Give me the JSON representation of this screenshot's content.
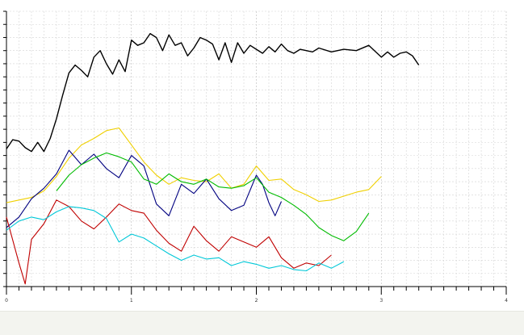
{
  "chart_data": {
    "type": "line",
    "title": "",
    "xlabel": "",
    "ylabel": "",
    "grid": true,
    "legend": "none",
    "xlim": [
      0,
      4.0
    ],
    "ylim": [
      0,
      21
    ],
    "x_ticks": [
      {
        "value": 0,
        "label": "0"
      },
      {
        "value": 1,
        "label": "1"
      },
      {
        "value": 2,
        "label": "2"
      },
      {
        "value": 3,
        "label": "3"
      },
      {
        "value": 4,
        "label": "4"
      }
    ],
    "y_ticks": [
      0,
      1,
      2,
      3,
      4,
      5,
      6,
      7,
      8,
      9,
      10,
      11,
      12,
      13,
      14,
      15,
      16,
      17,
      18,
      19,
      20,
      21
    ],
    "series": [
      {
        "color": "#000000",
        "x": [
          0.0,
          0.05,
          0.1,
          0.15,
          0.2,
          0.25,
          0.3,
          0.35,
          0.4,
          0.45,
          0.5,
          0.55,
          0.6,
          0.65,
          0.7,
          0.75,
          0.8,
          0.85,
          0.9,
          0.95,
          1.0,
          1.05,
          1.1,
          1.15,
          1.2,
          1.25,
          1.3,
          1.35,
          1.4,
          1.45,
          1.5,
          1.55,
          1.6,
          1.65,
          1.7,
          1.75,
          1.8,
          1.85,
          1.9,
          1.95,
          2.0,
          2.05,
          2.1,
          2.15,
          2.2,
          2.25,
          2.3,
          2.35,
          2.4,
          2.45,
          2.5,
          2.6,
          2.7,
          2.8,
          2.9,
          3.0,
          3.05,
          3.1,
          3.15,
          3.2,
          3.25,
          3.3
        ],
        "values": [
          10.5,
          11.2,
          11.1,
          10.6,
          10.3,
          11.0,
          10.3,
          11.3,
          12.8,
          14.6,
          16.3,
          16.9,
          16.5,
          16.0,
          17.5,
          18.0,
          17.0,
          16.2,
          17.3,
          16.4,
          18.8,
          18.4,
          18.6,
          19.3,
          19.0,
          18.0,
          19.2,
          18.4,
          18.6,
          17.6,
          18.2,
          19.0,
          18.8,
          18.5,
          17.3,
          18.6,
          17.1,
          18.6,
          17.8,
          18.4,
          18.1,
          17.8,
          18.3,
          17.9,
          18.5,
          18.0,
          17.8,
          18.1,
          18.0,
          17.9,
          18.2,
          17.9,
          18.1,
          18.0,
          18.4,
          17.5,
          17.9,
          17.5,
          17.8,
          17.9,
          17.6,
          16.9
        ]
      },
      {
        "color": "#f0d000",
        "x": [
          0.0,
          0.1,
          0.2,
          0.3,
          0.4,
          0.5,
          0.6,
          0.7,
          0.8,
          0.9,
          1.0,
          1.1,
          1.2,
          1.3,
          1.4,
          1.5,
          1.6,
          1.7,
          1.8,
          1.9,
          2.0,
          2.1,
          2.2,
          2.3,
          2.4,
          2.5,
          2.6,
          2.7,
          2.8,
          2.9,
          3.0
        ],
        "values": [
          6.4,
          6.6,
          6.8,
          7.3,
          8.4,
          9.8,
          10.8,
          11.3,
          11.9,
          12.1,
          10.8,
          9.5,
          8.5,
          7.8,
          8.3,
          8.1,
          8.0,
          8.6,
          7.5,
          7.8,
          9.2,
          8.1,
          8.2,
          7.4,
          7.0,
          6.5,
          6.6,
          6.9,
          7.2,
          7.4,
          8.4
        ]
      },
      {
        "color": "#000080",
        "x": [
          0.0,
          0.1,
          0.2,
          0.3,
          0.4,
          0.5,
          0.6,
          0.7,
          0.8,
          0.9,
          1.0,
          1.1,
          1.2,
          1.3,
          1.4,
          1.5,
          1.6,
          1.7,
          1.8,
          1.9,
          2.0,
          2.05,
          2.1,
          2.15,
          2.2
        ],
        "values": [
          4.5,
          5.3,
          6.7,
          7.5,
          8.6,
          10.4,
          9.3,
          10.1,
          9.0,
          8.3,
          10.0,
          9.2,
          6.3,
          5.4,
          7.8,
          7.1,
          8.2,
          6.7,
          5.8,
          6.2,
          8.5,
          7.8,
          6.4,
          5.4,
          6.5
        ]
      },
      {
        "color": "#00bb00",
        "x": [
          0.4,
          0.5,
          0.6,
          0.7,
          0.8,
          0.9,
          1.0,
          1.1,
          1.2,
          1.3,
          1.4,
          1.5,
          1.6,
          1.7,
          1.8,
          1.9,
          2.0,
          2.1,
          2.2,
          2.3,
          2.4,
          2.5,
          2.6,
          2.7,
          2.8,
          2.9
        ],
        "values": [
          7.3,
          8.5,
          9.3,
          9.8,
          10.2,
          9.9,
          9.5,
          8.2,
          7.8,
          8.6,
          8.0,
          7.8,
          8.2,
          7.6,
          7.5,
          7.7,
          8.3,
          7.2,
          6.8,
          6.2,
          5.5,
          4.5,
          3.9,
          3.5,
          4.2,
          5.6
        ]
      },
      {
        "color": "#c00000",
        "x": [
          0.0,
          0.1,
          0.15,
          0.2,
          0.3,
          0.4,
          0.5,
          0.6,
          0.7,
          0.8,
          0.9,
          1.0,
          1.1,
          1.2,
          1.3,
          1.4,
          1.5,
          1.6,
          1.7,
          1.8,
          1.9,
          2.0,
          2.1,
          2.2,
          2.3,
          2.4,
          2.5,
          2.6
        ],
        "values": [
          5.3,
          1.8,
          0.2,
          3.6,
          4.8,
          6.6,
          6.1,
          5.0,
          4.4,
          5.3,
          6.3,
          5.8,
          5.6,
          4.3,
          3.3,
          2.7,
          4.6,
          3.5,
          2.7,
          3.8,
          3.4,
          3.0,
          3.8,
          2.2,
          1.4,
          1.8,
          1.6,
          2.4
        ]
      },
      {
        "color": "#00c8d8",
        "x": [
          0.0,
          0.1,
          0.2,
          0.3,
          0.4,
          0.5,
          0.6,
          0.7,
          0.8,
          0.9,
          1.0,
          1.1,
          1.2,
          1.3,
          1.4,
          1.5,
          1.6,
          1.7,
          1.8,
          1.9,
          2.0,
          2.1,
          2.2,
          2.3,
          2.4,
          2.5,
          2.6,
          2.7
        ],
        "values": [
          4.3,
          5.0,
          5.3,
          5.1,
          5.7,
          6.1,
          6.0,
          5.8,
          5.2,
          3.4,
          4.0,
          3.7,
          3.1,
          2.5,
          2.0,
          2.4,
          2.1,
          2.2,
          1.6,
          1.9,
          1.7,
          1.4,
          1.6,
          1.3,
          1.2,
          1.8,
          1.4,
          1.9
        ]
      }
    ]
  }
}
